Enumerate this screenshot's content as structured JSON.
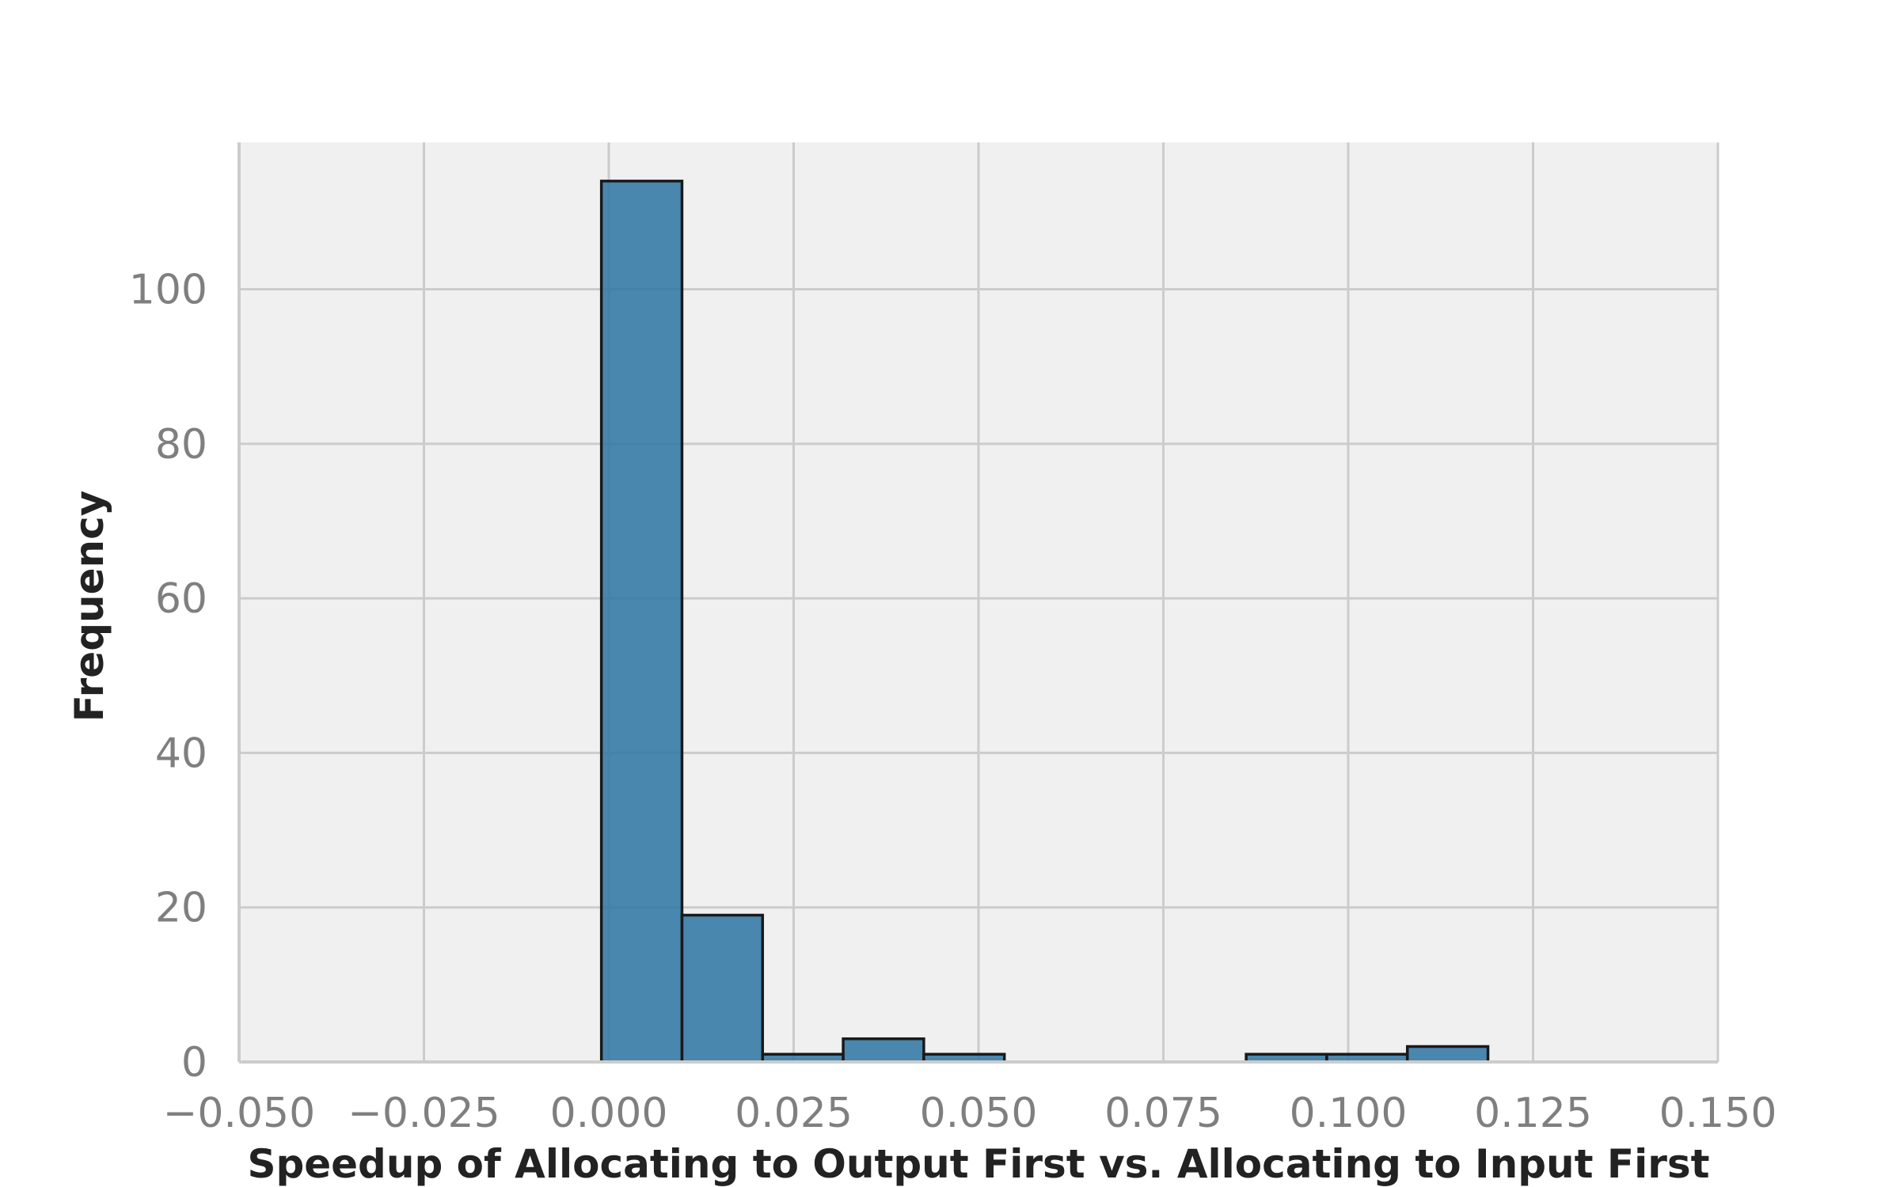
{
  "chart_data": {
    "type": "bar",
    "subtype": "histogram",
    "title": "",
    "xlabel": "Speedup of Allocating to Output First vs. Allocating to Input First",
    "ylabel": "Frequency",
    "xlim": [
      -0.05,
      0.15
    ],
    "ylim": [
      0,
      119
    ],
    "xticks": [
      -0.05,
      -0.025,
      0.0,
      0.025,
      0.05,
      0.075,
      0.1,
      0.125,
      0.15
    ],
    "xtick_labels": [
      "−0.050",
      "−0.025",
      "0.000",
      "0.025",
      "0.050",
      "0.075",
      "0.100",
      "0.125",
      "0.150"
    ],
    "yticks": [
      0,
      20,
      40,
      60,
      80,
      100
    ],
    "ytick_labels": [
      "0",
      "20",
      "40",
      "60",
      "80",
      "100"
    ],
    "bins": [
      {
        "start": -0.001,
        "end": 0.0099,
        "count": 114
      },
      {
        "start": 0.0099,
        "end": 0.0208,
        "count": 19
      },
      {
        "start": 0.0208,
        "end": 0.0317,
        "count": 1
      },
      {
        "start": 0.0317,
        "end": 0.0426,
        "count": 3
      },
      {
        "start": 0.0426,
        "end": 0.0535,
        "count": 1
      },
      {
        "start": 0.0535,
        "end": 0.0644,
        "count": 0
      },
      {
        "start": 0.0644,
        "end": 0.0753,
        "count": 0
      },
      {
        "start": 0.0753,
        "end": 0.0862,
        "count": 0
      },
      {
        "start": 0.0862,
        "end": 0.0971,
        "count": 1
      },
      {
        "start": 0.0971,
        "end": 0.108,
        "count": 1
      },
      {
        "start": 0.108,
        "end": 0.1189,
        "count": 2
      }
    ],
    "grid": true,
    "legend": "none",
    "colors": {
      "bar_fill": "#2b74a2",
      "bar_edge": "#1a1a1a",
      "plot_background": "#f0f0f0",
      "grid": "#cccccc",
      "tick_text": "#7f7f7f",
      "label_text": "#222222"
    }
  }
}
